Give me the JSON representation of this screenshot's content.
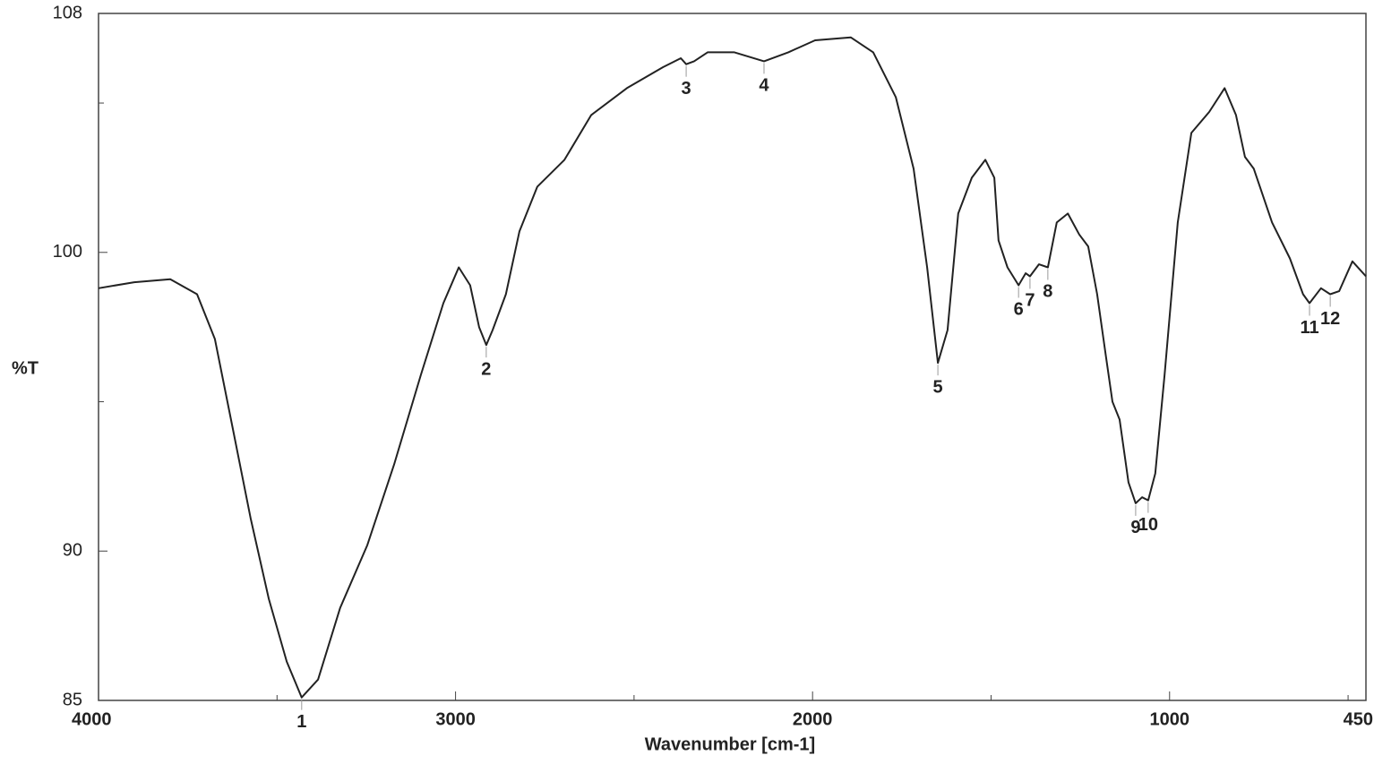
{
  "chart_data": {
    "type": "line",
    "xlabel": "Wavenumber [cm-1]",
    "ylabel": "%T",
    "xlim": [
      4000,
      450
    ],
    "ylim": [
      85,
      108
    ],
    "xticks": [
      4000,
      3000,
      2000,
      1000,
      450
    ],
    "xminor_ticks": [
      3500,
      2500,
      1500,
      500
    ],
    "yticks": [
      85,
      90,
      100,
      108
    ],
    "yminor_ticks": [
      95,
      105
    ],
    "color": "#222222",
    "x": [
      4000,
      3900,
      3799,
      3724,
      3674,
      3624,
      3574,
      3523,
      3473,
      3431,
      3385,
      3323,
      3247,
      3172,
      3097,
      3034,
      2991,
      2959,
      2934,
      2914,
      2896,
      2859,
      2821,
      2771,
      2695,
      2620,
      2520,
      2419,
      2369,
      2354,
      2332,
      2294,
      2219,
      2136,
      2068,
      1993,
      1893,
      1830,
      1767,
      1717,
      1679,
      1649,
      1622,
      1592,
      1554,
      1516,
      1491,
      1479,
      1454,
      1423,
      1403,
      1391,
      1366,
      1341,
      1316,
      1285,
      1253,
      1228,
      1203,
      1178,
      1160,
      1140,
      1115,
      1095,
      1077,
      1060,
      1040,
      1014,
      977,
      939,
      889,
      846,
      814,
      789,
      764,
      713,
      663,
      626,
      608,
      576,
      550,
      525,
      488,
      450
    ],
    "values": [
      98.8,
      99.0,
      99.1,
      98.6,
      97.1,
      94.1,
      91.1,
      88.4,
      86.3,
      85.1,
      85.7,
      88.1,
      90.2,
      92.9,
      95.9,
      98.3,
      99.5,
      98.9,
      97.5,
      96.9,
      97.4,
      98.6,
      100.7,
      102.2,
      103.1,
      104.6,
      105.5,
      106.2,
      106.5,
      106.3,
      106.4,
      106.7,
      106.7,
      106.4,
      106.7,
      107.1,
      107.2,
      106.7,
      105.2,
      102.8,
      99.5,
      96.3,
      97.4,
      101.3,
      102.5,
      103.1,
      102.5,
      100.4,
      99.5,
      98.9,
      99.3,
      99.2,
      99.6,
      99.5,
      101.0,
      101.3,
      100.6,
      100.2,
      98.6,
      96.5,
      95.0,
      94.4,
      92.3,
      91.6,
      91.8,
      91.7,
      92.6,
      95.9,
      101.0,
      104.0,
      104.7,
      105.5,
      104.6,
      103.2,
      102.8,
      101.0,
      99.8,
      98.6,
      98.3,
      98.8,
      98.6,
      98.7,
      99.7,
      99.2
    ],
    "peaks": [
      {
        "label": "1",
        "x": 3431,
        "y": 85.1
      },
      {
        "label": "2",
        "x": 2914,
        "y": 96.9
      },
      {
        "label": "3",
        "x": 2354,
        "y": 106.3
      },
      {
        "label": "4",
        "x": 2136,
        "y": 106.4
      },
      {
        "label": "5",
        "x": 1649,
        "y": 96.3
      },
      {
        "label": "6",
        "x": 1423,
        "y": 98.9
      },
      {
        "label": "7",
        "x": 1391,
        "y": 99.2
      },
      {
        "label": "8",
        "x": 1341,
        "y": 99.5
      },
      {
        "label": "9",
        "x": 1095,
        "y": 91.6
      },
      {
        "label": "10",
        "x": 1060,
        "y": 91.7
      },
      {
        "label": "11",
        "x": 608,
        "y": 98.3
      },
      {
        "label": "12",
        "x": 550,
        "y": 98.6
      }
    ]
  }
}
